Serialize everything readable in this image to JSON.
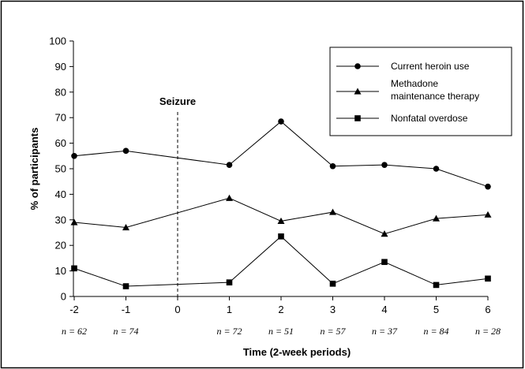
{
  "chart_data": {
    "type": "line",
    "xlabel": "Time (2-week periods)",
    "ylabel": "% of participants",
    "x": [
      -2,
      -1,
      1,
      2,
      3,
      4,
      5,
      6
    ],
    "xticks": [
      -2,
      -1,
      0,
      1,
      2,
      3,
      4,
      5,
      6
    ],
    "xlim": [
      -2,
      6
    ],
    "yticks": [
      0,
      10,
      20,
      30,
      40,
      50,
      60,
      70,
      80,
      90,
      100
    ],
    "ylim": [
      0,
      100
    ],
    "n_labels": [
      {
        "x": -2,
        "label": "n = 62"
      },
      {
        "x": -1,
        "label": "n = 74"
      },
      {
        "x": 1,
        "label": "n = 72"
      },
      {
        "x": 2,
        "label": "n = 51"
      },
      {
        "x": 3,
        "label": "n = 57"
      },
      {
        "x": 4,
        "label": "n = 37"
      },
      {
        "x": 5,
        "label": "n = 84"
      },
      {
        "x": 6,
        "label": "n = 28"
      }
    ],
    "annotation": {
      "text": "Seizure",
      "x": 0
    },
    "legend_position": "top-right",
    "series": [
      {
        "name": "Current heroin use",
        "marker": "circle",
        "values": [
          55,
          57,
          51.5,
          68.5,
          51,
          51.5,
          50,
          43
        ]
      },
      {
        "name": "Methadone maintenance therapy",
        "legend_lines": [
          "Methadone",
          "maintenance therapy"
        ],
        "marker": "triangle",
        "values": [
          29,
          27,
          38.5,
          29.5,
          33,
          24.5,
          30.5,
          32
        ]
      },
      {
        "name": "Nonfatal overdose",
        "marker": "square",
        "values": [
          11,
          4,
          5.5,
          23.5,
          5,
          13.5,
          4.5,
          7
        ]
      }
    ]
  }
}
